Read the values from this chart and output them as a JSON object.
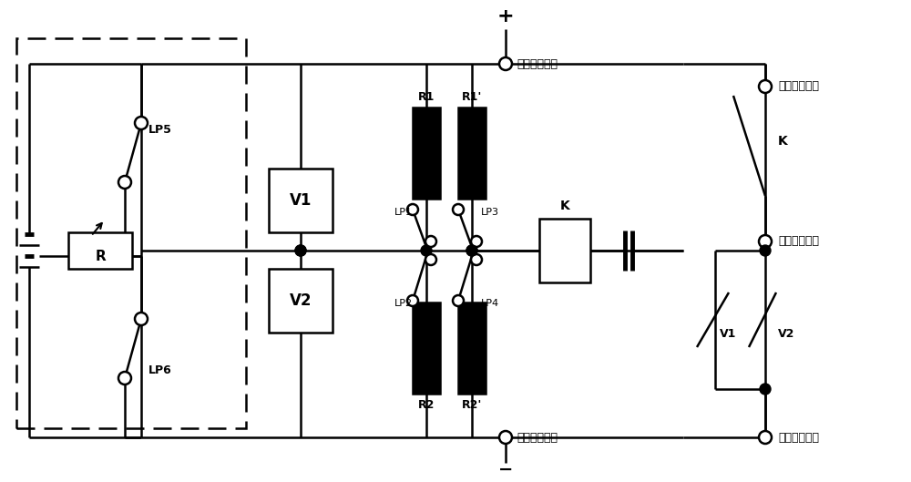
{
  "bg_color": "#ffffff",
  "lc": "#000000",
  "lw": 1.8,
  "fig_w": 10.0,
  "fig_h": 5.29,
  "dpi": 100,
  "pos_terminal": "正极接线端子",
  "neg_terminal": "负极接线端子",
  "sig1": "信号接线端孑",
  "sig2": "信号接线端孒",
  "sig3": "信号接线端孓"
}
